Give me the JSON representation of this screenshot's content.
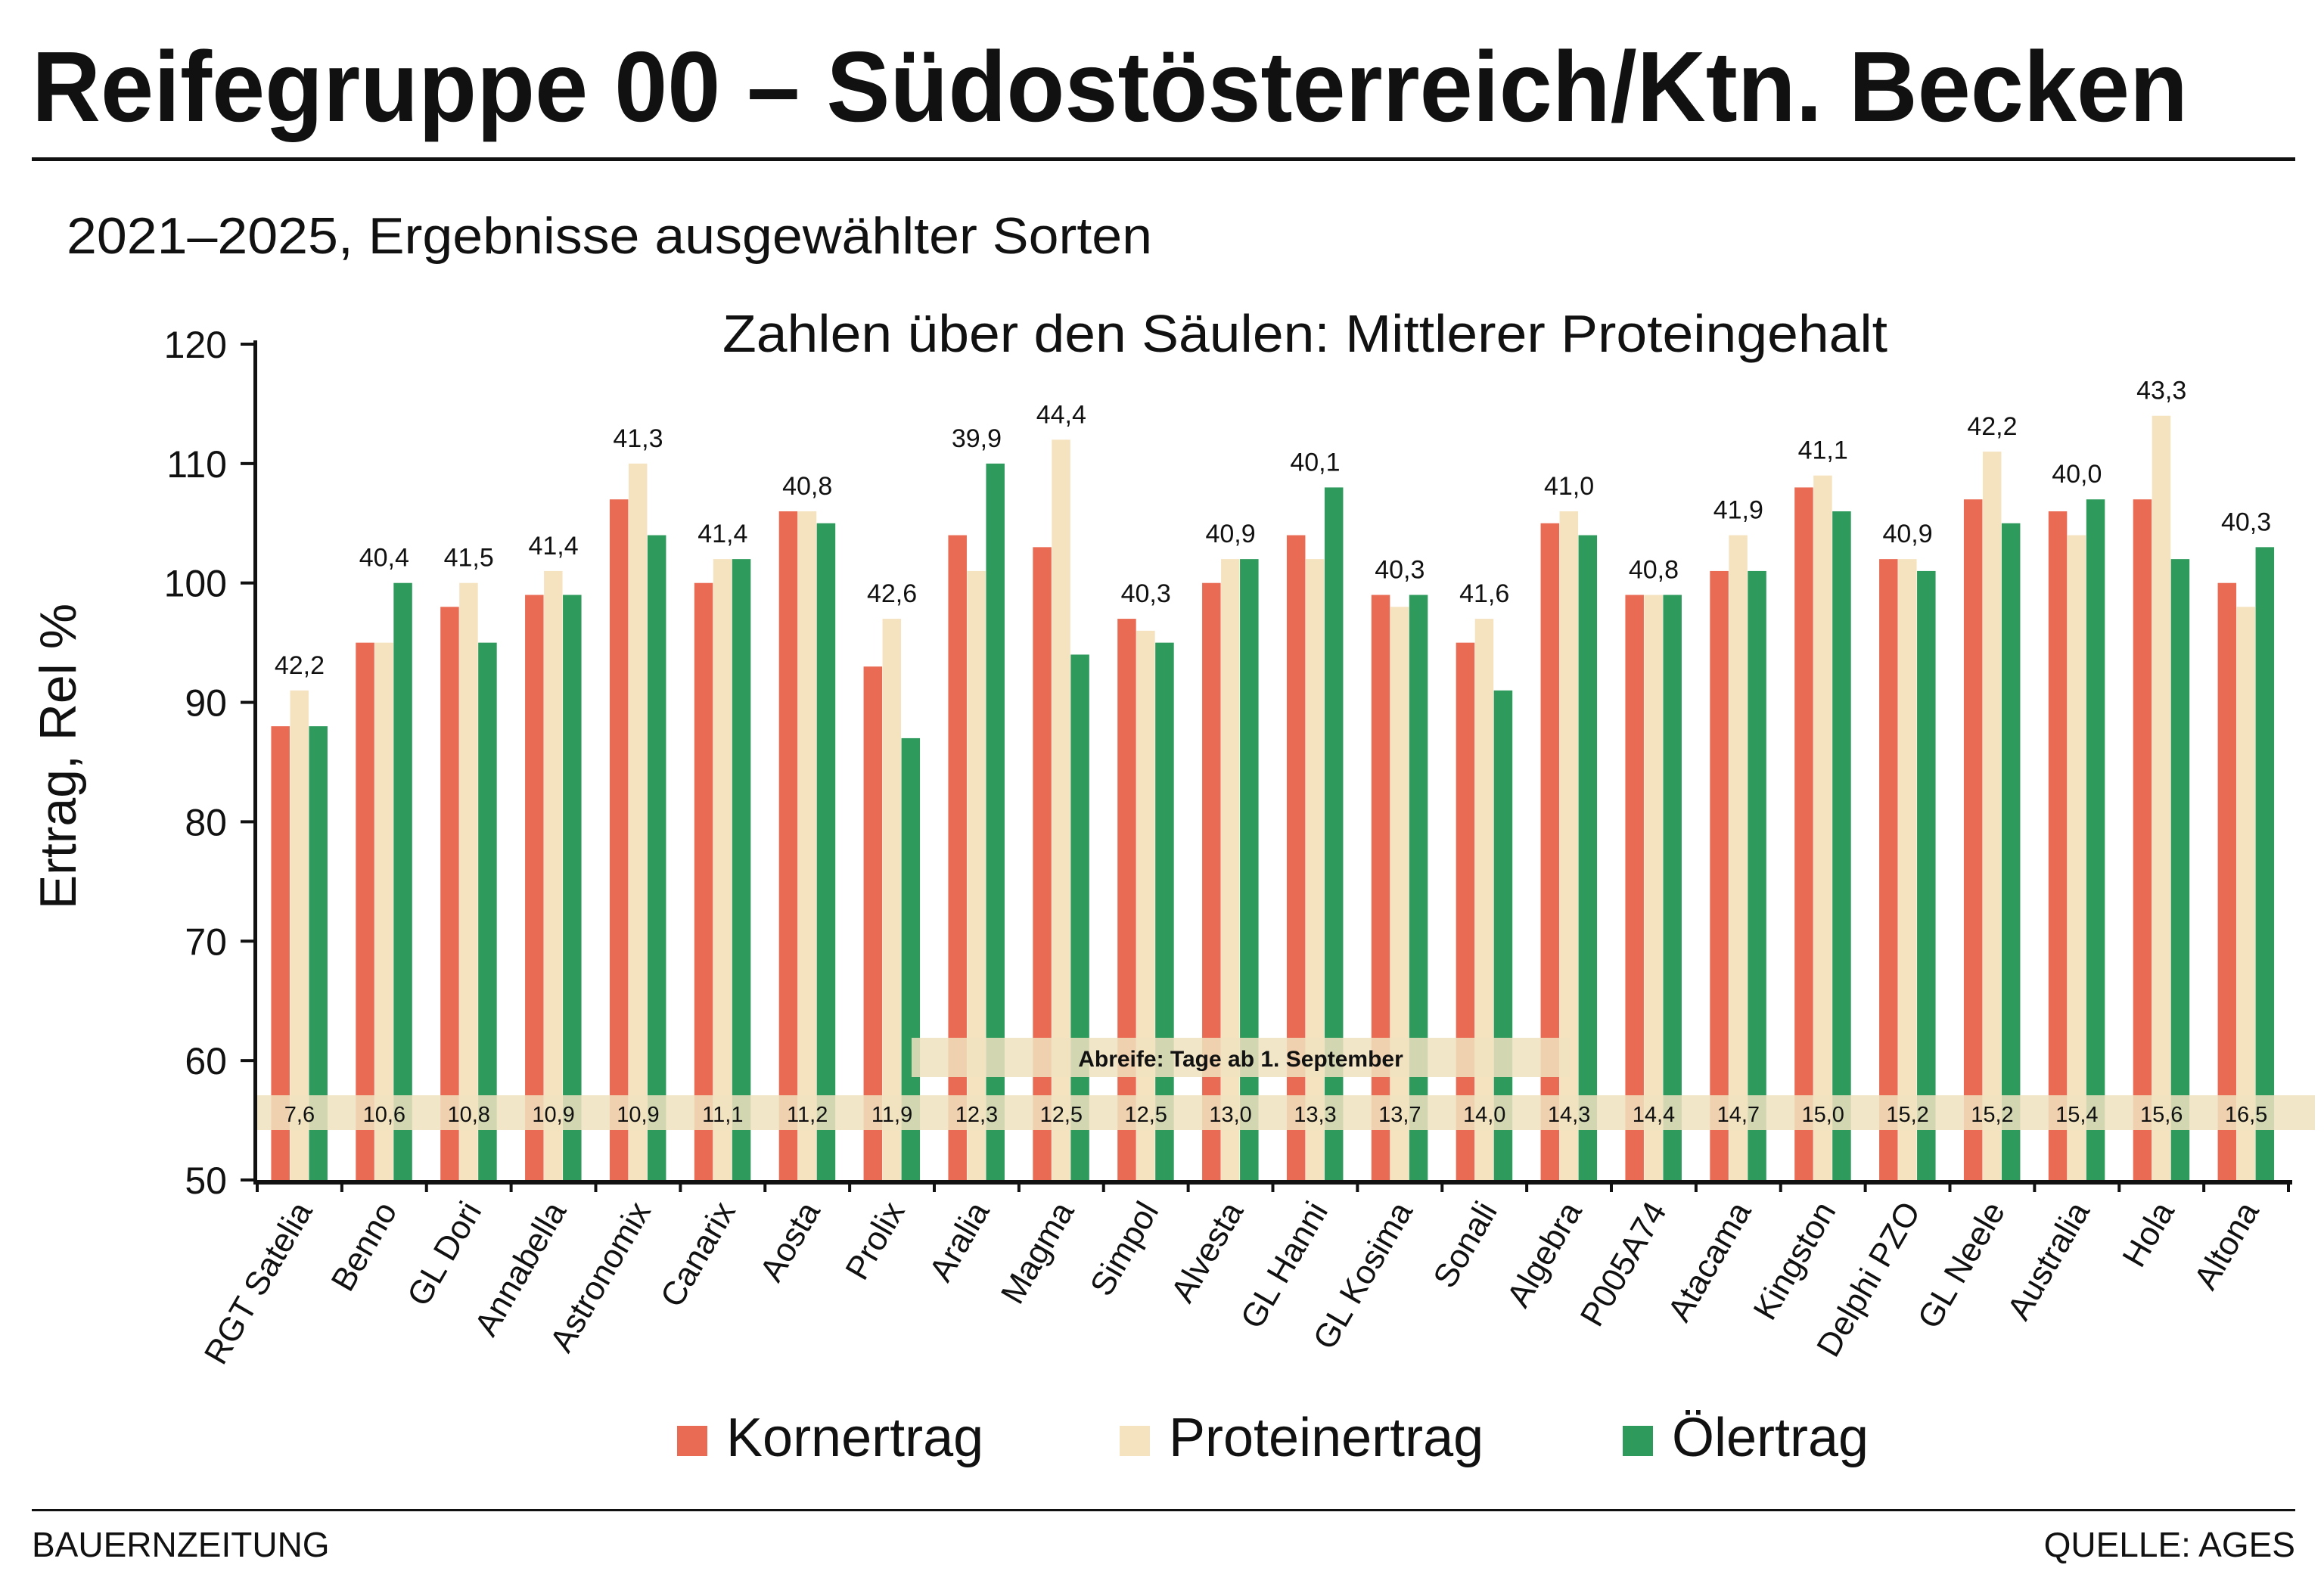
{
  "header": {
    "title": "Reifegruppe 00 – Südostösterreich/Ktn. Becken",
    "subtitle": "2021–2025, Ergebnisse ausgewählter Sorten"
  },
  "footer": {
    "left": "BAUERNZEITUNG",
    "right": "QUELLE: AGES"
  },
  "chart_data": {
    "type": "bar",
    "annotation": "Zahlen über den Säulen: Mittlerer Proteingehalt",
    "ylabel": "Ertrag, Rel %",
    "ylim": [
      50,
      120
    ],
    "yticks": [
      50,
      60,
      70,
      80,
      90,
      100,
      110,
      120
    ],
    "grid": false,
    "legend_position": "bottom",
    "colors": {
      "Kornertrag": "#e96b54",
      "Proteinertrag": "#f5e3c0",
      "Ölertrag": "#2e9a5c"
    },
    "categories": [
      "RGT Satelia",
      "Benno",
      "GL Dori",
      "Annabella",
      "Astronomix",
      "Canarix",
      "Aosta",
      "Prolix",
      "Aralia",
      "Magma",
      "Simpol",
      "Alvesta",
      "GL Hanni",
      "GL Kosima",
      "Sonali",
      "Algebra",
      "P005A74",
      "Atacama",
      "Kingston",
      "Delphi PZO",
      "GL Neele",
      "Australia",
      "Hola",
      "Altona"
    ],
    "series": [
      {
        "name": "Kornertrag",
        "values": [
          88,
          95,
          98,
          99,
          107,
          100,
          106,
          93,
          104,
          103,
          97,
          100,
          104,
          99,
          95,
          105,
          99,
          101,
          108,
          102,
          107,
          106,
          107,
          100
        ]
      },
      {
        "name": "Proteinertrag",
        "values": [
          91,
          95,
          100,
          101,
          110,
          102,
          106,
          97,
          101,
          112,
          96,
          102,
          102,
          98,
          97,
          106,
          99,
          104,
          109,
          102,
          111,
          104,
          114,
          98
        ]
      },
      {
        "name": "Ölertrag",
        "values": [
          88,
          100,
          95,
          99,
          104,
          102,
          105,
          87,
          110,
          94,
          95,
          102,
          108,
          99,
          91,
          104,
          99,
          101,
          106,
          101,
          105,
          107,
          102,
          103
        ]
      }
    ],
    "protein_content_labels": [
      "42,2",
      "40,4",
      "41,5",
      "41,4",
      "41,3",
      "41,4",
      "40,8",
      "42,6",
      "39,9",
      "44,4",
      "40,3",
      "40,9",
      "40,1",
      "40,3",
      "41,6",
      "41,0",
      "40,8",
      "41,9",
      "41,1",
      "40,9",
      "42,2",
      "40,0",
      "43,3",
      "40,3"
    ],
    "maturity_label": "Abreife: Tage ab 1. September",
    "maturity_days": [
      "7,6",
      "10,6",
      "10,8",
      "10,9",
      "10,9",
      "11,1",
      "11,2",
      "11,9",
      "12,3",
      "12,5",
      "12,5",
      "13,0",
      "13,3",
      "13,7",
      "14,0",
      "14,3",
      "14,4",
      "14,7",
      "15,0",
      "15,2",
      "15,2",
      "15,4",
      "15,6",
      "16,5"
    ]
  }
}
